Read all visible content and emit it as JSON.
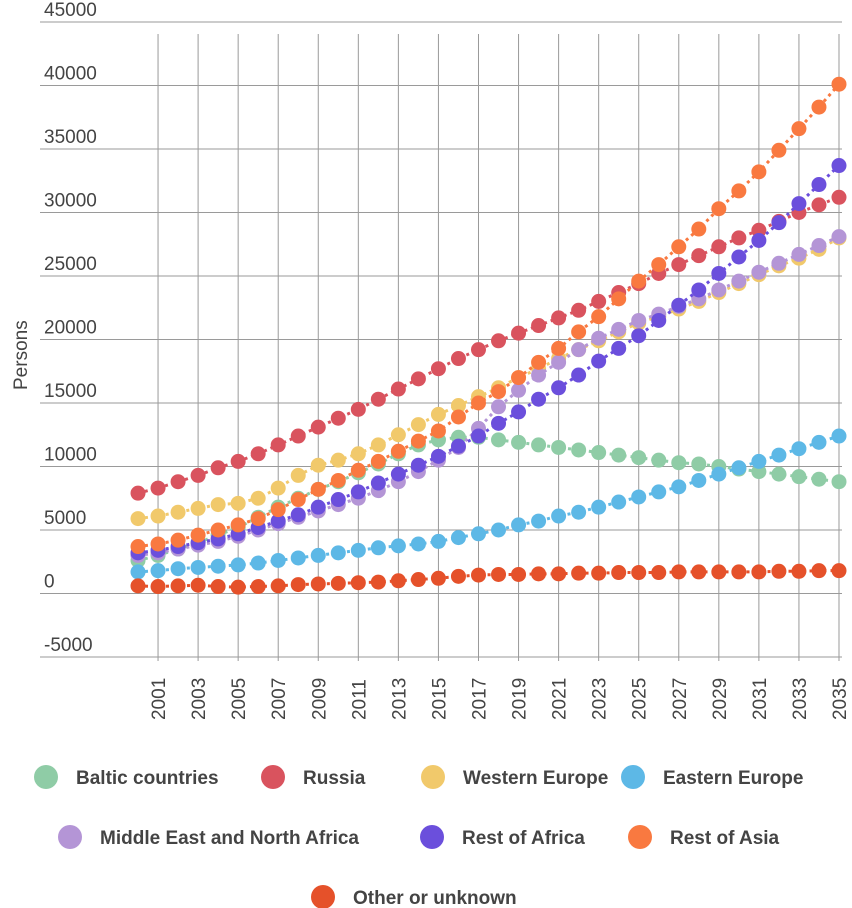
{
  "chart_data": {
    "type": "scatter",
    "title": "",
    "ylabel": "Persons",
    "xlabel": "",
    "ylim": [
      -5000,
      45000
    ],
    "y_ticks": [
      "-5000",
      "0",
      "5000",
      "10000",
      "15000",
      "20000",
      "25000",
      "30000",
      "35000",
      "40000",
      "45000"
    ],
    "x_tick_labels": [
      "2001",
      "2003",
      "2005",
      "2007",
      "2009",
      "2011",
      "2013",
      "2015",
      "2017",
      "2019",
      "2021",
      "2023",
      "2025",
      "2027",
      "2029",
      "2031",
      "2033",
      "2035"
    ],
    "x": [
      2000,
      2001,
      2002,
      2003,
      2004,
      2005,
      2006,
      2007,
      2008,
      2009,
      2010,
      2011,
      2012,
      2013,
      2014,
      2015,
      2016,
      2017,
      2018,
      2019,
      2020,
      2021,
      2022,
      2023,
      2024,
      2025,
      2026,
      2027,
      2028,
      2029,
      2030,
      2031,
      2032,
      2033,
      2034,
      2035
    ],
    "grid": "vertical lines on x ticks",
    "legend_position": "bottom",
    "series": [
      {
        "name": "Baltic countries",
        "color": "#8fcca6",
        "values": [
          2600,
          3000,
          3500,
          4000,
          4600,
          5200,
          6000,
          6800,
          7500,
          8200,
          8800,
          9500,
          10200,
          11000,
          11700,
          12100,
          12300,
          12300,
          12100,
          11900,
          11700,
          11500,
          11300,
          11100,
          10900,
          10700,
          10500,
          10300,
          10200,
          10000,
          9800,
          9600,
          9400,
          9200,
          9000,
          8800
        ]
      },
      {
        "name": "Russia",
        "color": "#d9535e",
        "values": [
          7900,
          8300,
          8800,
          9300,
          9900,
          10400,
          11000,
          11700,
          12400,
          13100,
          13800,
          14500,
          15300,
          16100,
          16900,
          17700,
          18500,
          19200,
          19900,
          20500,
          21100,
          21700,
          22300,
          23000,
          23700,
          24400,
          25200,
          25900,
          26600,
          27300,
          28000,
          28600,
          29300,
          30000,
          30600,
          31200
        ]
      },
      {
        "name": "Western Europe",
        "color": "#f1c96b",
        "values": [
          5900,
          6100,
          6400,
          6700,
          7000,
          7100,
          7500,
          8300,
          9300,
          10100,
          10500,
          11000,
          11700,
          12500,
          13300,
          14100,
          14800,
          15500,
          16200,
          17000,
          17700,
          18500,
          19200,
          19900,
          20600,
          21300,
          21800,
          22400,
          23000,
          23700,
          24400,
          25100,
          25800,
          26400,
          27100,
          28000
        ]
      },
      {
        "name": "Eastern Europe",
        "color": "#5db8e6",
        "values": [
          1700,
          1800,
          1950,
          2050,
          2150,
          2250,
          2400,
          2600,
          2800,
          3000,
          3200,
          3400,
          3600,
          3750,
          3900,
          4100,
          4400,
          4700,
          5000,
          5400,
          5700,
          6100,
          6400,
          6800,
          7200,
          7600,
          8000,
          8400,
          8900,
          9400,
          9900,
          10400,
          10900,
          11400,
          11900,
          12400
        ]
      },
      {
        "name": "Middle East and North Africa",
        "color": "#b495d6",
        "values": [
          3000,
          3200,
          3500,
          3800,
          4100,
          4500,
          5000,
          5500,
          6000,
          6500,
          7000,
          7500,
          8100,
          8800,
          9600,
          10500,
          11500,
          13000,
          14700,
          16000,
          17200,
          18200,
          19200,
          20100,
          20800,
          21500,
          22000,
          22600,
          23200,
          23900,
          24600,
          25300,
          26000,
          26700,
          27400,
          28100
        ]
      },
      {
        "name": "Rest of Africa",
        "color": "#6b4fdc",
        "values": [
          3200,
          3400,
          3700,
          4000,
          4300,
          4700,
          5200,
          5700,
          6200,
          6800,
          7400,
          8000,
          8700,
          9400,
          10100,
          10800,
          11600,
          12400,
          13400,
          14300,
          15300,
          16200,
          17200,
          18300,
          19300,
          20300,
          21500,
          22700,
          23900,
          25200,
          26500,
          27800,
          29200,
          30700,
          32200,
          33700
        ]
      },
      {
        "name": "Rest of Asia",
        "color": "#f97940",
        "values": [
          3700,
          3900,
          4200,
          4600,
          5000,
          5400,
          5900,
          6600,
          7400,
          8200,
          8900,
          9700,
          10400,
          11200,
          12000,
          12800,
          13900,
          15000,
          15900,
          17000,
          18200,
          19300,
          20600,
          21800,
          23200,
          24600,
          25900,
          27300,
          28700,
          30300,
          31700,
          33200,
          34900,
          36600,
          38300,
          40100
        ]
      },
      {
        "name": "Other or unknown",
        "color": "#e5512a",
        "values": [
          600,
          550,
          600,
          650,
          550,
          500,
          550,
          600,
          700,
          750,
          800,
          850,
          900,
          1000,
          1100,
          1200,
          1350,
          1450,
          1500,
          1500,
          1550,
          1550,
          1600,
          1600,
          1650,
          1650,
          1650,
          1700,
          1700,
          1700,
          1700,
          1700,
          1750,
          1750,
          1800,
          1800
        ]
      }
    ]
  }
}
